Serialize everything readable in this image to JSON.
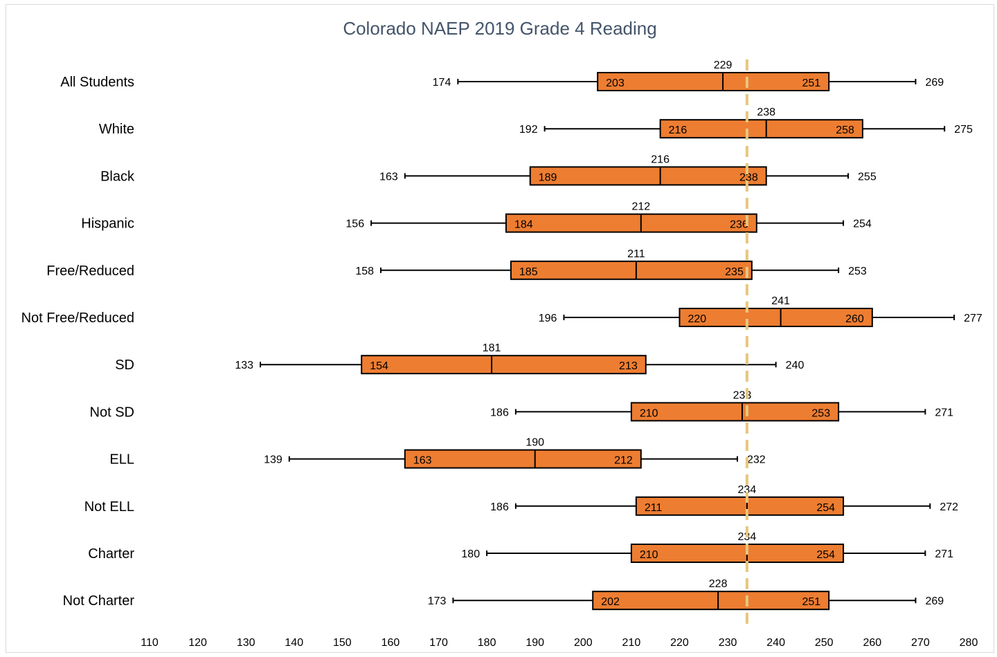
{
  "chart_data": {
    "type": "boxplot",
    "title": "Colorado NAEP 2019 Grade 4 Reading",
    "xlim": [
      110,
      280
    ],
    "x_ticks": [
      "110",
      "120",
      "130",
      "140",
      "150",
      "160",
      "170",
      "180",
      "190",
      "200",
      "210",
      "220",
      "230",
      "240",
      "250",
      "260",
      "270",
      "280"
    ],
    "reference_line_value": 234,
    "box_color": "#ed7d31",
    "reference_line_color": "#e6c77e",
    "categories": [
      {
        "name": "All Students",
        "min": 174,
        "q1": 203,
        "median": 229,
        "q3": 251,
        "max": 269
      },
      {
        "name": "White",
        "min": 192,
        "q1": 216,
        "median": 238,
        "q3": 258,
        "max": 275
      },
      {
        "name": "Black",
        "min": 163,
        "q1": 189,
        "median": 216,
        "q3": 238,
        "max": 255
      },
      {
        "name": "Hispanic",
        "min": 156,
        "q1": 184,
        "median": 212,
        "q3": 236,
        "max": 254
      },
      {
        "name": "Free/Reduced",
        "min": 158,
        "q1": 185,
        "median": 211,
        "q3": 235,
        "max": 253
      },
      {
        "name": "Not Free/Reduced",
        "min": 196,
        "q1": 220,
        "median": 241,
        "q3": 260,
        "max": 277
      },
      {
        "name": "SD",
        "min": 133,
        "q1": 154,
        "median": 181,
        "q3": 213,
        "max": 240
      },
      {
        "name": "Not SD",
        "min": 186,
        "q1": 210,
        "median": 233,
        "q3": 253,
        "max": 271
      },
      {
        "name": "ELL",
        "min": 139,
        "q1": 163,
        "median": 190,
        "q3": 212,
        "max": 232
      },
      {
        "name": "Not ELL",
        "min": 186,
        "q1": 211,
        "median": 234,
        "q3": 254,
        "max": 272
      },
      {
        "name": "Charter",
        "min": 180,
        "q1": 210,
        "median": 234,
        "q3": 254,
        "max": 271
      },
      {
        "name": "Not Charter",
        "min": 173,
        "q1": 202,
        "median": 228,
        "q3": 251,
        "max": 269
      }
    ]
  }
}
